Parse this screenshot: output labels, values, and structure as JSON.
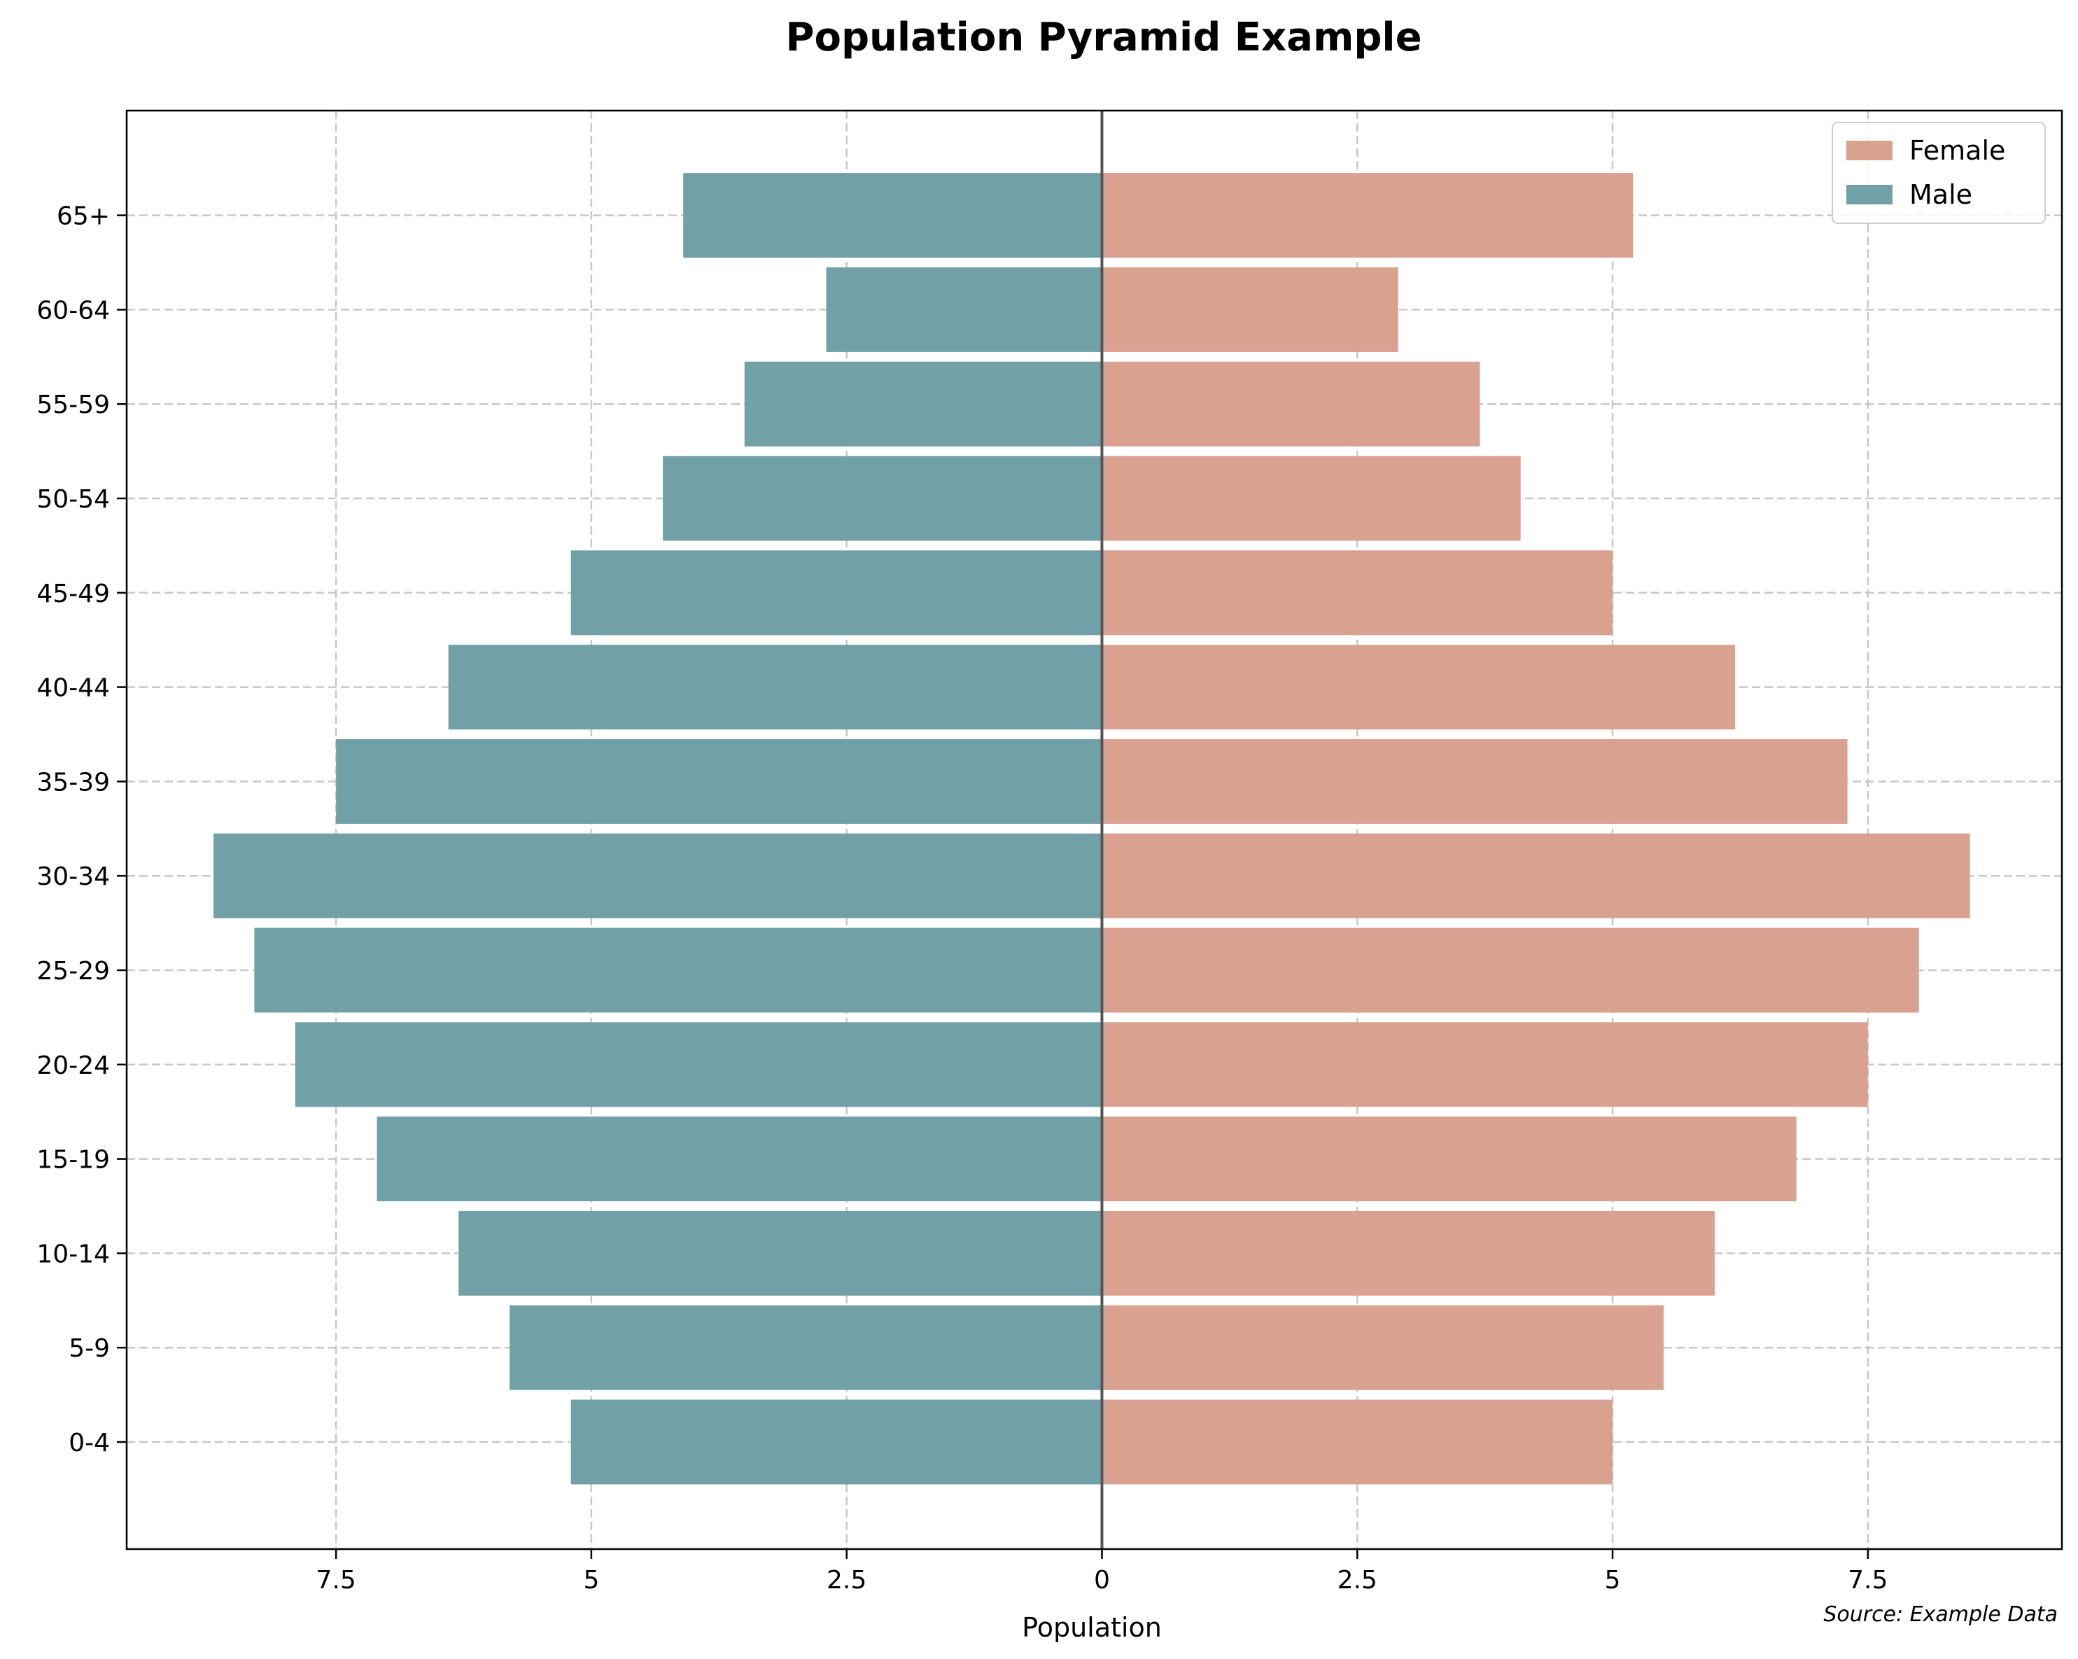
{
  "chart_data": {
    "type": "bar",
    "orientation": "horizontal",
    "title": "Population Pyramid Example",
    "xlabel": "Population",
    "ylabel": "",
    "source_note": "Source: Example Data",
    "categories": [
      "0-4",
      "5-9",
      "10-14",
      "15-19",
      "20-24",
      "25-29",
      "30-34",
      "35-39",
      "40-44",
      "45-49",
      "50-54",
      "55-59",
      "60-64",
      "65+"
    ],
    "series": [
      {
        "name": "Female",
        "color": "#d9a190",
        "values": [
          5.0,
          5.5,
          6.0,
          6.8,
          7.5,
          8.0,
          8.5,
          7.3,
          6.2,
          5.0,
          4.1,
          3.7,
          2.9,
          5.2
        ]
      },
      {
        "name": "Male",
        "color": "#71a1a6",
        "values": [
          -5.2,
          -5.8,
          -6.3,
          -7.1,
          -7.9,
          -8.3,
          -8.7,
          -7.5,
          -6.4,
          -5.2,
          -4.3,
          -3.5,
          -2.7,
          -4.1
        ]
      }
    ],
    "xlim": [
      -9.55,
      9.4
    ],
    "xticks": [
      {
        "value": -7.5,
        "label": "7.5"
      },
      {
        "value": -5,
        "label": "5"
      },
      {
        "value": -2.5,
        "label": "2.5"
      },
      {
        "value": 0,
        "label": "0"
      },
      {
        "value": 2.5,
        "label": "2.5"
      },
      {
        "value": 5,
        "label": "5"
      },
      {
        "value": 7.5,
        "label": "7.5"
      }
    ],
    "grid": true,
    "grid_style": "dashed",
    "legend_position": "top-right",
    "legend": [
      "Female",
      "Male"
    ]
  }
}
